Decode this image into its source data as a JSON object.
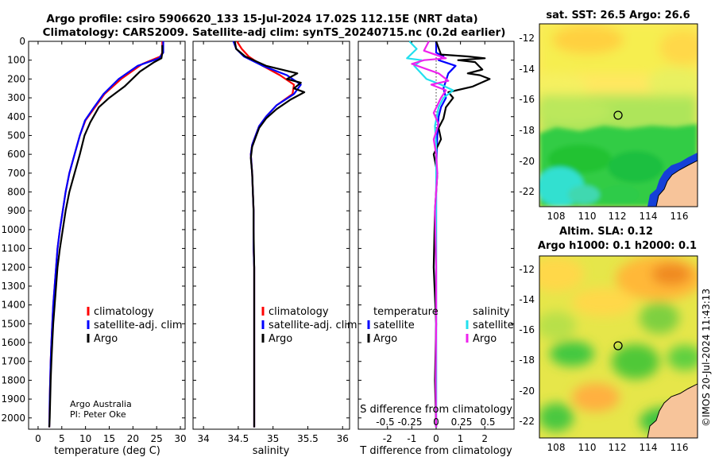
{
  "header": {
    "title_line1": "Argo profile: csiro 5906620_133 15-Jul-2024 17.02S 112.15E (NRT data)",
    "title_line2": "Climatology: CARS2009. Satellite-adj clim: synTS_20240715.nc (0.2d earlier)"
  },
  "colors": {
    "climatology": "#ff0000",
    "satellite_adj": "#0000ff",
    "argo": "#000000",
    "s_satellite": "#22e0ee",
    "s_argo": "#ee22ee"
  },
  "credit": {
    "line1": "Argo Australia",
    "line2": "PI: Peter Oke"
  },
  "timestamp": "©IMOS 20-Jul-2024 11:43:13",
  "chart_data": [
    {
      "id": "temperature",
      "type": "line",
      "xlabel": "temperature (deg C)",
      "ylabel": "",
      "xlim": [
        -2,
        31
      ],
      "ylim": [
        2060,
        0
      ],
      "xticks": [
        0,
        5,
        10,
        15,
        20,
        25,
        30
      ],
      "xtick_labels": [
        "0",
        "5",
        "10",
        "15",
        "20",
        "25",
        "30"
      ],
      "yticks": [
        0,
        100,
        200,
        300,
        400,
        500,
        600,
        700,
        800,
        900,
        1000,
        1100,
        1200,
        1300,
        1400,
        1500,
        1600,
        1700,
        1800,
        1900,
        2000
      ],
      "ytick_labels": [
        "0",
        "100",
        "200",
        "300",
        "400",
        "500",
        "600",
        "700",
        "800",
        "900",
        "1000",
        "1100",
        "1200",
        "1300",
        "1400",
        "1500",
        "1600",
        "1700",
        "1800",
        "1900",
        "2000"
      ],
      "legend": [
        "climatology",
        "satellite-adj. clim",
        "Argo"
      ],
      "series": [
        {
          "name": "climatology",
          "color": "#ff0000",
          "x": [
            26.2,
            26.2,
            25.8,
            22,
            17.5,
            14,
            12,
            10,
            8.8,
            7.7,
            6.6,
            5.8,
            5.2,
            4.6,
            4.1,
            3.8,
            3.5,
            3.2,
            3.0,
            2.8,
            2.65,
            2.55,
            2.45,
            2.4,
            2.35
          ],
          "y": [
            0,
            60,
            80,
            120,
            200,
            280,
            350,
            420,
            500,
            600,
            700,
            800,
            900,
            1000,
            1100,
            1200,
            1300,
            1400,
            1500,
            1600,
            1700,
            1800,
            1900,
            2000,
            2050
          ]
        },
        {
          "name": "satellite-adj. clim",
          "color": "#0000ff",
          "x": [
            26.4,
            26.4,
            25.5,
            21,
            17,
            13.8,
            11.8,
            9.9,
            8.8,
            7.7,
            6.6,
            5.8,
            5.2,
            4.6,
            4.1,
            3.8,
            3.5,
            3.2,
            3.0,
            2.8,
            2.65,
            2.55,
            2.45,
            2.4,
            2.35
          ],
          "y": [
            0,
            60,
            90,
            130,
            200,
            280,
            350,
            420,
            500,
            600,
            700,
            800,
            900,
            1000,
            1100,
            1200,
            1300,
            1400,
            1500,
            1600,
            1700,
            1800,
            1900,
            2000,
            2050
          ]
        },
        {
          "name": "Argo",
          "color": "#000000",
          "x": [
            26.2,
            26.2,
            26.0,
            24.5,
            21.5,
            18.2,
            15,
            12.8,
            11,
            9.8,
            8.8,
            7.7,
            6.6,
            5.8,
            5.2,
            4.6,
            4.1,
            3.8,
            3.5,
            3.2,
            3.0,
            2.8,
            2.65,
            2.55,
            2.45,
            2.4,
            2.35
          ],
          "y": [
            20,
            60,
            90,
            110,
            160,
            240,
            300,
            350,
            430,
            500,
            600,
            700,
            800,
            900,
            1000,
            1100,
            1200,
            1300,
            1400,
            1500,
            1600,
            1700,
            1800,
            1900,
            2000,
            2030,
            2050
          ]
        }
      ]
    },
    {
      "id": "salinity",
      "type": "line",
      "xlabel": "salinity",
      "ylabel": "",
      "xlim": [
        33.85,
        36.1
      ],
      "ylim": [
        2060,
        0
      ],
      "xticks": [
        34,
        34.5,
        35,
        35.5,
        36
      ],
      "xtick_labels": [
        "34",
        "34.5",
        "35",
        "35.5",
        "36"
      ],
      "legend": [
        "climatology",
        "satellite-adj. clim",
        "Argo"
      ],
      "series": [
        {
          "name": "climatology",
          "color": "#ff0000",
          "x": [
            34.48,
            34.55,
            34.65,
            34.85,
            35.1,
            35.3,
            35.28,
            35.05,
            34.9,
            34.8,
            34.75,
            34.7,
            34.68,
            34.7,
            34.71,
            34.72,
            34.72,
            34.72,
            34.73,
            34.73,
            34.73,
            34.73,
            34.73,
            34.73,
            34.73,
            34.73,
            34.73,
            34.73
          ],
          "y": [
            0,
            40,
            80,
            130,
            180,
            230,
            280,
            340,
            400,
            450,
            500,
            550,
            600,
            700,
            800,
            900,
            1000,
            1100,
            1200,
            1300,
            1400,
            1500,
            1600,
            1700,
            1800,
            1900,
            2000,
            2050
          ]
        },
        {
          "name": "satellite-adj. clim",
          "color": "#0000ff",
          "x": [
            34.43,
            34.47,
            34.58,
            34.85,
            35.2,
            35.4,
            35.3,
            35.05,
            34.9,
            34.8,
            34.75,
            34.7,
            34.68,
            34.7,
            34.71,
            34.72,
            34.72,
            34.72,
            34.73,
            34.73,
            34.73,
            34.73,
            34.73,
            34.73,
            34.73,
            34.73,
            34.73,
            34.73
          ],
          "y": [
            0,
            40,
            80,
            130,
            180,
            230,
            280,
            340,
            400,
            450,
            500,
            550,
            600,
            700,
            800,
            900,
            1000,
            1100,
            1200,
            1300,
            1400,
            1500,
            1600,
            1700,
            1800,
            1900,
            2000,
            2050
          ]
        },
        {
          "name": "Argo",
          "color": "#000000",
          "x": [
            34.45,
            34.47,
            34.6,
            34.9,
            35.35,
            35.2,
            35.4,
            35.3,
            35.45,
            35.25,
            35.05,
            34.9,
            34.8,
            34.75,
            34.7,
            34.68,
            34.7,
            34.71,
            34.72,
            34.72,
            34.73,
            34.73,
            34.73,
            34.73,
            34.73,
            34.73,
            34.73
          ],
          "y": [
            0,
            40,
            80,
            130,
            170,
            200,
            220,
            250,
            270,
            310,
            360,
            410,
            460,
            510,
            560,
            620,
            700,
            800,
            900,
            1000,
            1200,
            1400,
            1600,
            1800,
            1900,
            2000,
            2050
          ]
        }
      ]
    },
    {
      "id": "difference",
      "type": "line",
      "xlabel": "T difference from climatology",
      "xlabel_top": "S difference from climatology",
      "xlim": [
        -3.2,
        3.2
      ],
      "ylim": [
        2060,
        0
      ],
      "xticks": [
        -2,
        -1,
        0,
        1,
        2
      ],
      "xtick_labels": [
        "-2",
        "-1",
        "0",
        "1",
        "2"
      ],
      "s_ticks": [
        "-0.5",
        "-0.25",
        "0",
        "0.25",
        "0.5"
      ],
      "legend_temperature": [
        "temperature",
        "satellite",
        "Argo"
      ],
      "legend_salinity": [
        "salinity",
        "satellite",
        "Argo"
      ],
      "series": [
        {
          "name": "T satellite",
          "color": "#0000ff",
          "x": [
            0,
            0,
            0.3,
            0.1,
            0.8,
            0.5,
            0.4,
            0.3,
            0.4,
            0.2,
            0.1,
            0.05,
            0.02,
            0,
            0,
            0,
            0,
            0,
            0
          ],
          "y": [
            0,
            60,
            80,
            100,
            130,
            170,
            210,
            250,
            300,
            350,
            400,
            500,
            600,
            800,
            1000,
            1200,
            1500,
            1800,
            2050
          ]
        },
        {
          "name": "T Argo",
          "color": "#000000",
          "x": [
            0,
            0.2,
            1.3,
            2.0,
            0.9,
            1.6,
            1.9,
            1.3,
            1.8,
            2.2,
            1.5,
            0.5,
            0.7,
            0.4,
            0.3,
            0.1,
            0.2,
            -0.1,
            0.05,
            -0.05,
            -0.1,
            0,
            -0.05,
            0
          ],
          "y": [
            0,
            70,
            80,
            90,
            100,
            110,
            150,
            170,
            180,
            200,
            240,
            270,
            300,
            350,
            410,
            460,
            520,
            600,
            700,
            900,
            1200,
            1500,
            1800,
            2050
          ]
        },
        {
          "name": "S satellite",
          "color": "#22e0ee",
          "x": [
            -1.1,
            -0.8,
            -1.2,
            -0.6,
            -0.9,
            -0.4,
            0.2,
            0.7,
            0.3,
            0.1,
            -0.05,
            0,
            0,
            0,
            0,
            0,
            0,
            0
          ],
          "y": [
            0,
            40,
            90,
            100,
            130,
            200,
            230,
            260,
            300,
            350,
            450,
            550,
            700,
            900,
            1200,
            1500,
            1800,
            2050
          ]
        },
        {
          "name": "S Argo",
          "color": "#ee22ee",
          "x": [
            -0.3,
            -0.5,
            0.4,
            -0.5,
            -1.0,
            0.1,
            0.5,
            -0.2,
            0.4,
            0.2,
            -0.1,
            0.1,
            -0.1,
            0,
            0.05,
            -0.05,
            0,
            0,
            -0.02,
            0
          ],
          "y": [
            0,
            50,
            90,
            100,
            120,
            170,
            210,
            230,
            260,
            300,
            380,
            440,
            520,
            600,
            700,
            900,
            1200,
            1500,
            1800,
            2050
          ]
        }
      ]
    }
  ],
  "maps": [
    {
      "id": "sst-map",
      "title": "sat. SST: 26.5 Argo: 26.6",
      "xticks": [
        "108",
        "110",
        "112",
        "114",
        "116"
      ],
      "yticks": [
        "-12",
        "-14",
        "-16",
        "-18",
        "-20",
        "-22"
      ]
    },
    {
      "id": "sla-map",
      "title_line1": "Altim. SLA: 0.12",
      "title_line2": "Argo h1000: 0.1 h2000: 0.1",
      "xticks": [
        "108",
        "110",
        "112",
        "114",
        "116"
      ],
      "yticks": [
        "-12",
        "-14",
        "-16",
        "-18",
        "-20",
        "-22"
      ]
    }
  ]
}
